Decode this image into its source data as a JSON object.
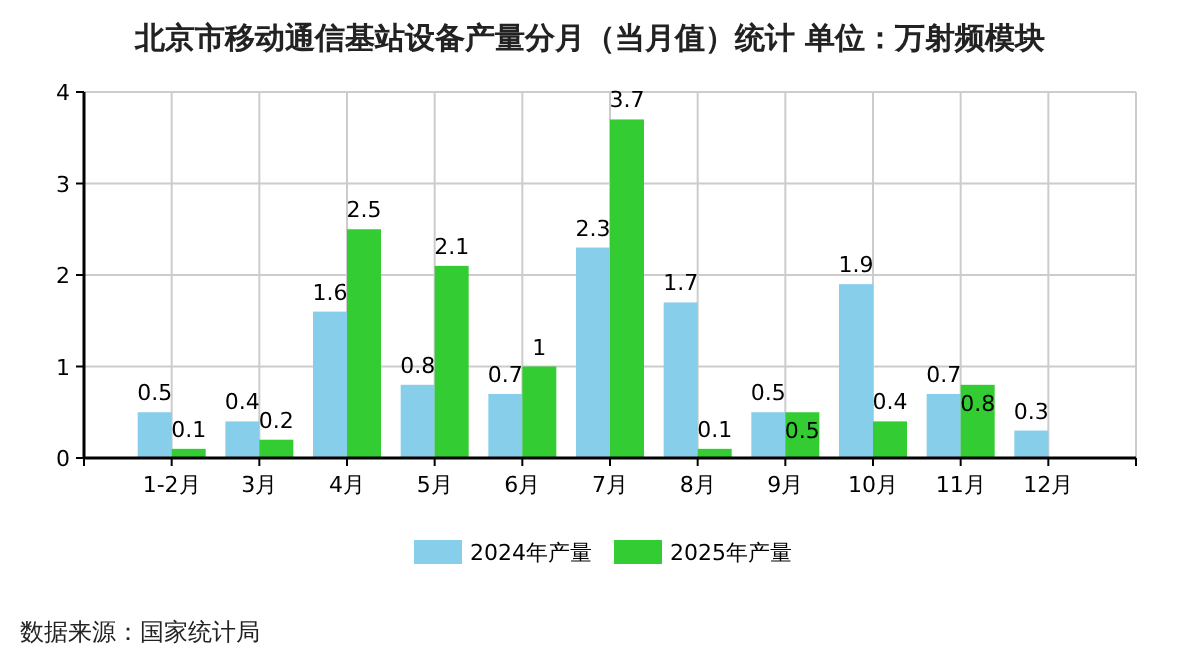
{
  "chart_data": {
    "type": "bar",
    "title": "北京市移动通信基站设备产量分月（当月值）统计  单位：万射频模块",
    "categories": [
      "1-2月",
      "3月",
      "4月",
      "5月",
      "6月",
      "7月",
      "8月",
      "9月",
      "10月",
      "11月",
      "12月"
    ],
    "series": [
      {
        "name": "2024年产量",
        "color": "#87ceeb",
        "values": [
          0.5,
          0.4,
          1.6,
          0.8,
          0.7,
          2.3,
          1.7,
          0.5,
          1.9,
          0.7,
          0.3
        ]
      },
      {
        "name": "2025年产量",
        "color": "#33cc33",
        "values": [
          0.1,
          0.2,
          2.5,
          2.1,
          1,
          3.7,
          0.1,
          0.5,
          0.4,
          0.8,
          null
        ]
      }
    ],
    "ylim": [
      0,
      4
    ],
    "yticks": [
      0,
      1,
      2,
      3,
      4
    ],
    "grid": true,
    "legend": "bottom",
    "data_labels": true,
    "annotations": [
      "数据来源：国家统计局"
    ]
  }
}
